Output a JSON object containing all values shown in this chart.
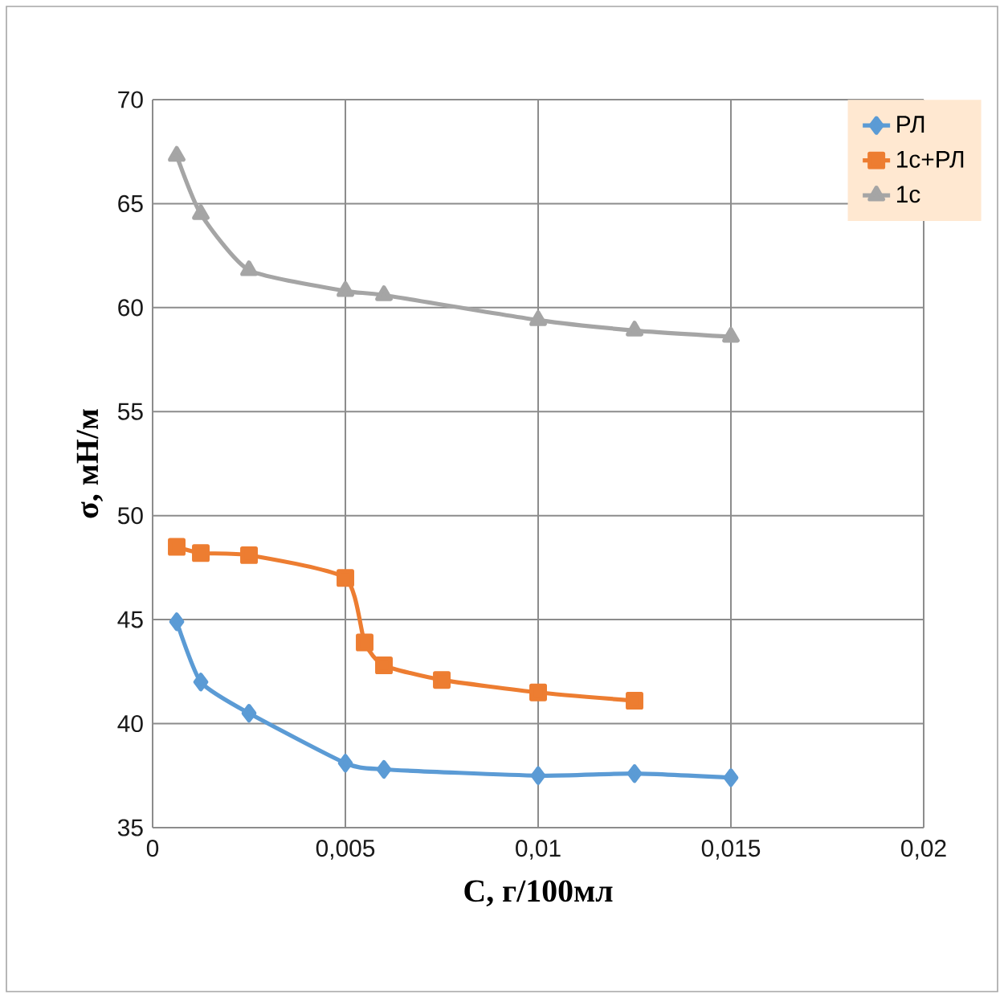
{
  "chart_data": {
    "type": "line",
    "xlabel": "С, г/100мл",
    "ylabel": "σ, мН/м",
    "xlim": [
      0,
      0.02
    ],
    "ylim": [
      35,
      70
    ],
    "xticks": [
      0,
      {
        "value": 0.005,
        "label": "0,005"
      },
      {
        "value": 0.01,
        "label": "0,01"
      },
      {
        "value": 0.015,
        "label": "0,015"
      },
      {
        "value": 0.02,
        "label": "0,02"
      }
    ],
    "yticks": [
      35,
      40,
      45,
      50,
      55,
      60,
      65,
      70
    ],
    "grid": true,
    "legend": "top right",
    "series": [
      {
        "name": "РЛ",
        "color": "#5b9bd5",
        "marker": "diamond",
        "x": [
          0.000625,
          0.00125,
          0.0025,
          0.005,
          0.006,
          0.01,
          0.0125,
          0.015
        ],
        "values": [
          44.9,
          42.0,
          40.5,
          38.1,
          37.8,
          37.5,
          37.6,
          37.4
        ]
      },
      {
        "name": "1с+РЛ",
        "color": "#ed7d31",
        "marker": "square",
        "x": [
          0.000625,
          0.00125,
          0.0025,
          0.005,
          0.0055,
          0.006,
          0.0075,
          0.01,
          0.0125
        ],
        "values": [
          48.5,
          48.2,
          48.1,
          47.0,
          43.9,
          42.8,
          42.1,
          41.5,
          41.1
        ]
      },
      {
        "name": "1с",
        "color": "#a5a5a5",
        "marker": "triangle",
        "x": [
          0.000625,
          0.00125,
          0.0025,
          0.005,
          0.006,
          0.01,
          0.0125,
          0.015
        ],
        "values": [
          67.3,
          64.5,
          61.8,
          60.8,
          60.6,
          59.4,
          58.9,
          58.6
        ]
      }
    ]
  }
}
